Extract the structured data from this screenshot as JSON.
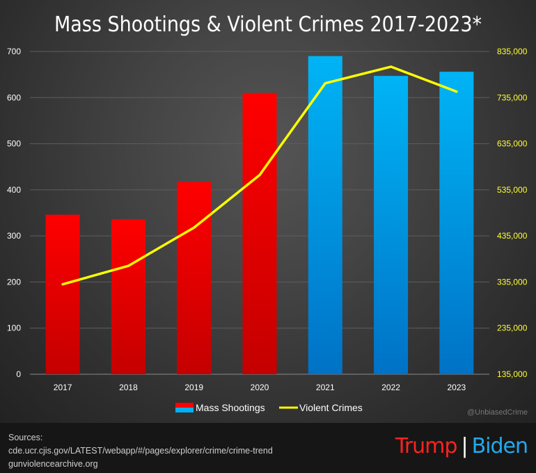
{
  "chart_data": {
    "type": "bar",
    "title": "Mass Shootings & Violent Crimes 2017-2023*",
    "categories": [
      "2017",
      "2018",
      "2019",
      "2020",
      "2021",
      "2022",
      "2023"
    ],
    "series": [
      {
        "name": "Mass Shootings",
        "type": "bar",
        "axis": "left",
        "values": [
          346,
          336,
          417,
          610,
          690,
          647,
          656
        ],
        "bar_party": [
          "Trump",
          "Trump",
          "Trump",
          "Trump",
          "Biden",
          "Biden",
          "Biden"
        ]
      },
      {
        "name": "Violent Crimes",
        "type": "line",
        "axis": "right",
        "values": [
          330000,
          370000,
          453000,
          567000,
          766000,
          802000,
          748000
        ]
      }
    ],
    "ylim_left": [
      0,
      700
    ],
    "yticks_left": [
      "0",
      "100",
      "200",
      "300",
      "400",
      "500",
      "600",
      "700"
    ],
    "ylim_right": [
      135000,
      835000
    ],
    "yticks_right": [
      "135,000",
      "235,000",
      "335,000",
      "435,000",
      "535,000",
      "635,000",
      "735,000",
      "835,000"
    ],
    "legend_position": "bottom",
    "grid": "horizontal",
    "colors": {
      "trump_bar": "#ff0000",
      "biden_bar": "#00b0f0",
      "line": "#ffff00",
      "right_axis_text": "#ffff33"
    }
  },
  "watermark": "@UnbiasedCrime",
  "sources": {
    "heading": "Sources:",
    "lines": [
      "cde.ucr.cjis.gov/LATEST/webapp/#/pages/explorer/crime/crime-trend",
      "gunviolencearchive.org"
    ]
  },
  "party_labels": {
    "trump": "Trump",
    "separator": "|",
    "biden": "Biden"
  }
}
